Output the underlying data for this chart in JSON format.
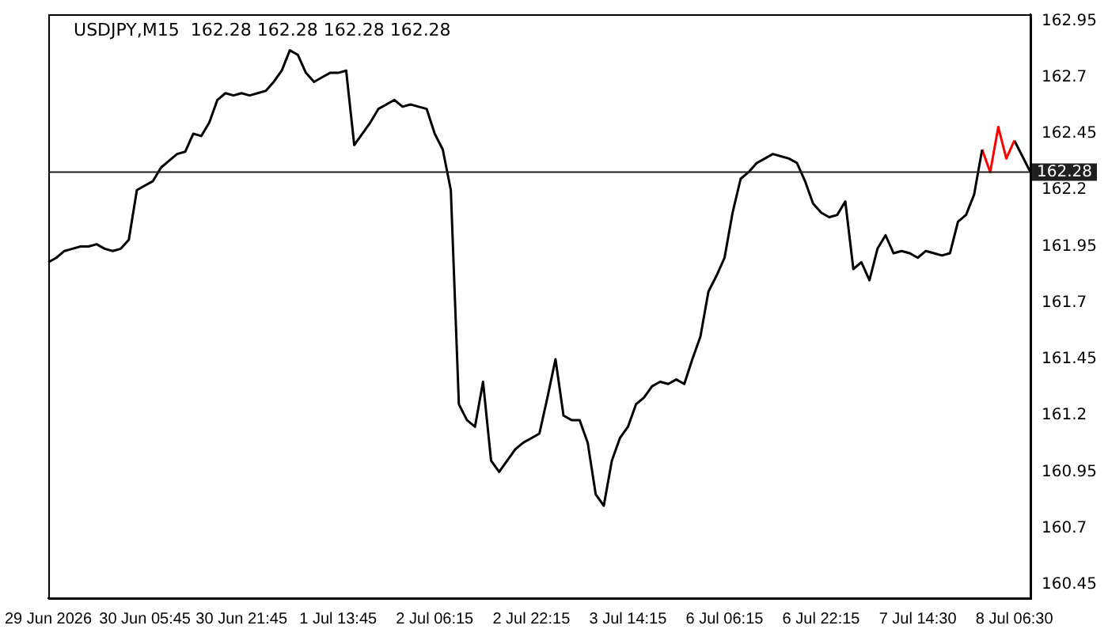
{
  "chart_data": {
    "type": "line",
    "title": "USDJPY,M15  162.28 162.28 162.28 162.28",
    "categories": [
      "29 Jun 2026",
      null,
      null,
      null,
      null,
      null,
      null,
      null,
      null,
      null,
      null,
      null,
      "30 Jun 05:45",
      null,
      null,
      null,
      null,
      null,
      null,
      null,
      null,
      null,
      null,
      null,
      "30 Jun 21:45",
      null,
      null,
      null,
      null,
      null,
      null,
      null,
      null,
      null,
      null,
      null,
      "1 Jul 13:45",
      null,
      null,
      null,
      null,
      null,
      null,
      null,
      null,
      null,
      null,
      null,
      "2 Jul 06:15",
      null,
      null,
      null,
      null,
      null,
      null,
      null,
      null,
      null,
      null,
      null,
      "2 Jul 22:15",
      null,
      null,
      null,
      null,
      null,
      null,
      null,
      null,
      null,
      null,
      null,
      "3 Jul 14:15",
      null,
      null,
      null,
      null,
      null,
      null,
      null,
      null,
      null,
      null,
      null,
      "6 Jul 06:15",
      null,
      null,
      null,
      null,
      null,
      null,
      null,
      null,
      null,
      null,
      null,
      "6 Jul 22:15",
      null,
      null,
      null,
      null,
      null,
      null,
      null,
      null,
      null,
      null,
      null,
      "7 Jul 14:30",
      null,
      null,
      null,
      null,
      null,
      null,
      null,
      null,
      null,
      null,
      null,
      "8 Jul 06:30",
      null,
      null
    ],
    "series": [
      {
        "color": "#000000",
        "values": [
          161.88,
          161.9,
          161.93,
          161.94,
          161.95,
          161.95,
          161.96,
          161.94,
          161.93,
          161.94,
          161.98,
          162.2,
          162.22,
          162.24,
          162.3,
          162.33,
          162.36,
          162.37,
          162.45,
          162.44,
          162.5,
          162.6,
          162.63,
          162.62,
          162.63,
          162.62,
          162.63,
          162.64,
          162.68,
          162.73,
          162.82,
          162.8,
          162.72,
          162.68,
          162.7,
          162.72,
          162.72,
          162.73,
          162.4,
          162.45,
          162.5,
          162.56,
          162.58,
          162.6,
          162.57,
          162.58,
          162.57,
          162.56,
          162.45,
          162.38,
          162.2,
          161.25,
          161.18,
          161.15,
          161.35,
          161.0,
          160.95,
          161.0,
          161.05,
          161.08,
          161.1,
          161.12,
          161.28,
          161.45,
          161.2,
          161.18,
          161.18,
          161.08,
          160.85,
          160.8,
          161.0,
          161.1,
          161.15,
          161.25,
          161.28,
          161.33,
          161.35,
          161.34,
          161.36,
          161.34,
          161.45,
          161.55,
          161.75,
          161.82,
          161.9,
          162.1,
          162.25,
          162.28,
          162.32,
          162.34,
          162.36,
          162.35,
          162.34,
          162.32,
          162.24,
          162.14,
          162.1,
          162.08,
          162.09,
          162.15,
          161.85,
          161.88,
          161.8,
          161.94,
          162.0,
          161.92,
          161.93,
          161.92,
          161.9,
          161.93,
          161.92,
          161.91,
          161.92,
          162.06,
          162.09,
          162.18,
          162.38,
          null,
          null,
          null,
          null,
          null,
          null
        ]
      },
      {
        "color": "#ff0000",
        "values": [
          null,
          null,
          null,
          null,
          null,
          null,
          null,
          null,
          null,
          null,
          null,
          null,
          null,
          null,
          null,
          null,
          null,
          null,
          null,
          null,
          null,
          null,
          null,
          null,
          null,
          null,
          null,
          null,
          null,
          null,
          null,
          null,
          null,
          null,
          null,
          null,
          null,
          null,
          null,
          null,
          null,
          null,
          null,
          null,
          null,
          null,
          null,
          null,
          null,
          null,
          null,
          null,
          null,
          null,
          null,
          null,
          null,
          null,
          null,
          null,
          null,
          null,
          null,
          null,
          null,
          null,
          null,
          null,
          null,
          null,
          null,
          null,
          null,
          null,
          null,
          null,
          null,
          null,
          null,
          null,
          null,
          null,
          null,
          null,
          null,
          null,
          null,
          null,
          null,
          null,
          null,
          null,
          null,
          null,
          null,
          null,
          null,
          null,
          null,
          null,
          null,
          null,
          null,
          null,
          null,
          null,
          null,
          null,
          null,
          null,
          null,
          null,
          null,
          null,
          null,
          null,
          162.38,
          162.28,
          162.48,
          162.34,
          162.42,
          null,
          null
        ]
      },
      {
        "color": "#000000",
        "values": [
          null,
          null,
          null,
          null,
          null,
          null,
          null,
          null,
          null,
          null,
          null,
          null,
          null,
          null,
          null,
          null,
          null,
          null,
          null,
          null,
          null,
          null,
          null,
          null,
          null,
          null,
          null,
          null,
          null,
          null,
          null,
          null,
          null,
          null,
          null,
          null,
          null,
          null,
          null,
          null,
          null,
          null,
          null,
          null,
          null,
          null,
          null,
          null,
          null,
          null,
          null,
          null,
          null,
          null,
          null,
          null,
          null,
          null,
          null,
          null,
          null,
          null,
          null,
          null,
          null,
          null,
          null,
          null,
          null,
          null,
          null,
          null,
          null,
          null,
          null,
          null,
          null,
          null,
          null,
          null,
          null,
          null,
          null,
          null,
          null,
          null,
          null,
          null,
          null,
          null,
          null,
          null,
          null,
          null,
          null,
          null,
          null,
          null,
          null,
          null,
          null,
          null,
          null,
          null,
          null,
          null,
          null,
          null,
          null,
          null,
          null,
          null,
          null,
          null,
          null,
          null,
          null,
          null,
          null,
          null,
          162.42,
          162.35,
          162.28
        ]
      }
    ],
    "ylim": [
      160.39,
      162.98
    ],
    "yticks": [
      160.45,
      160.7,
      160.95,
      161.2,
      161.45,
      161.7,
      161.95,
      162.2,
      162.45,
      162.7,
      162.95
    ],
    "ref_lines": [
      {
        "axis": "y",
        "value": 162.28,
        "label": "162.28",
        "color": "#202020"
      }
    ],
    "grid": false,
    "legend": false,
    "marker": "none",
    "line_style": "solid"
  }
}
